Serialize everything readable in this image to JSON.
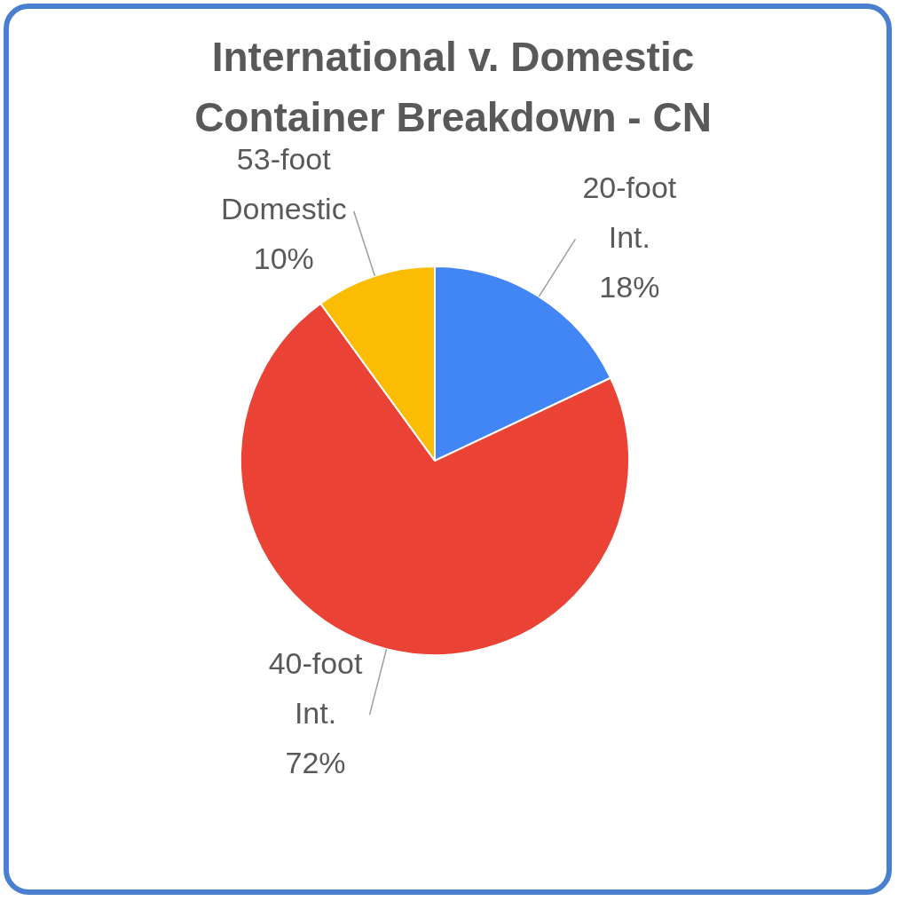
{
  "chart_data": {
    "type": "pie",
    "title": "International v. Domestic Container Breakdown - CN",
    "categories": [
      "20-foot Int.",
      "40-foot Int.",
      "53-foot Domestic"
    ],
    "values": [
      18,
      72,
      10
    ],
    "value_labels": [
      "18%",
      "72%",
      "10%"
    ],
    "colors": [
      "#4285f4",
      "#ea4335",
      "#fbbc04"
    ],
    "legend": false
  }
}
